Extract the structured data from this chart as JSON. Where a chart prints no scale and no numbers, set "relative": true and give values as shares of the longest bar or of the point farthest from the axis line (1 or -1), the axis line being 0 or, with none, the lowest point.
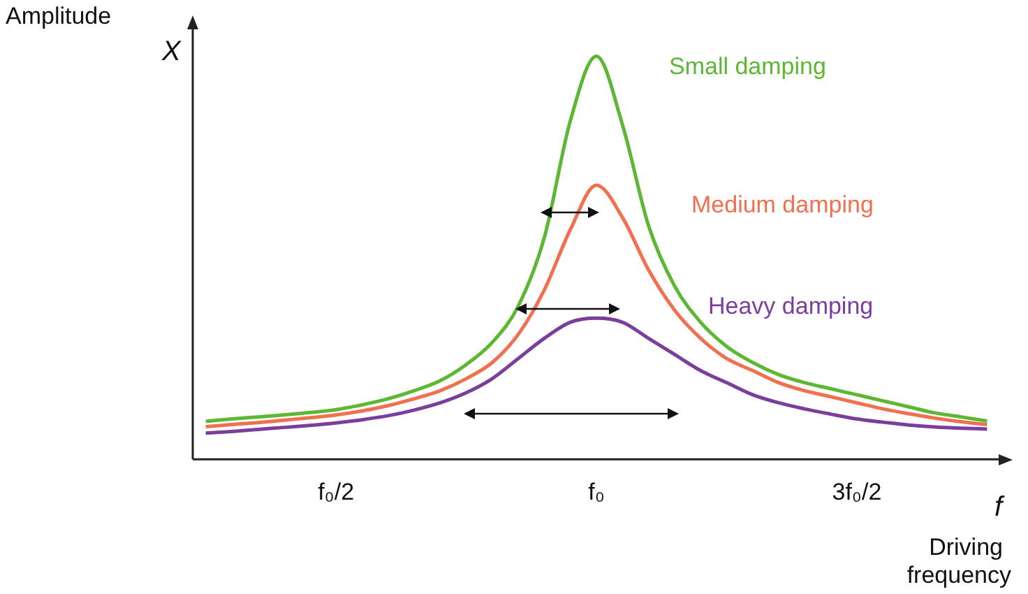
{
  "chart_data": {
    "type": "line",
    "relative": true,
    "ylabel": "Amplitude",
    "xlabel": "Driving frequency",
    "annotations": [
      "X",
      "f"
    ],
    "grid": false,
    "legend": false,
    "marker": "none",
    "line_style": "solid",
    "categories": [
      null,
      null,
      null,
      null,
      null,
      "f₀/2",
      null,
      null,
      null,
      null,
      null,
      null,
      null,
      null,
      null,
      "f₀",
      null,
      null,
      null,
      null,
      null,
      null,
      null,
      null,
      null,
      "3f₀/2",
      null,
      null,
      null,
      null,
      null
    ],
    "series": [
      {
        "name": "Small damping",
        "color": "#5cb833",
        "values": [
          0.094,
          0.1,
          0.105,
          0.11,
          0.116,
          0.123,
          0.135,
          0.15,
          0.17,
          0.195,
          0.235,
          0.29,
          0.38,
          0.55,
          0.84,
          1.0,
          0.83,
          0.58,
          0.43,
          0.34,
          0.28,
          0.24,
          0.21,
          0.19,
          0.175,
          0.16,
          0.145,
          0.13,
          0.115,
          0.105,
          0.095
        ]
      },
      {
        "name": "Medium damping",
        "color": "#f07050",
        "values": [
          0.081,
          0.086,
          0.091,
          0.097,
          0.103,
          0.11,
          0.12,
          0.133,
          0.15,
          0.17,
          0.2,
          0.24,
          0.31,
          0.42,
          0.57,
          0.68,
          0.6,
          0.47,
          0.37,
          0.3,
          0.25,
          0.22,
          0.19,
          0.17,
          0.155,
          0.14,
          0.125,
          0.113,
          0.102,
          0.093,
          0.086
        ]
      },
      {
        "name": "Heavy damping",
        "color": "#7a3f9d",
        "values": [
          0.065,
          0.069,
          0.074,
          0.079,
          0.084,
          0.09,
          0.098,
          0.108,
          0.122,
          0.14,
          0.165,
          0.2,
          0.25,
          0.3,
          0.34,
          0.35,
          0.34,
          0.3,
          0.26,
          0.22,
          0.19,
          0.16,
          0.14,
          0.125,
          0.112,
          0.1,
          0.092,
          0.085,
          0.08,
          0.077,
          0.075
        ]
      }
    ]
  }
}
